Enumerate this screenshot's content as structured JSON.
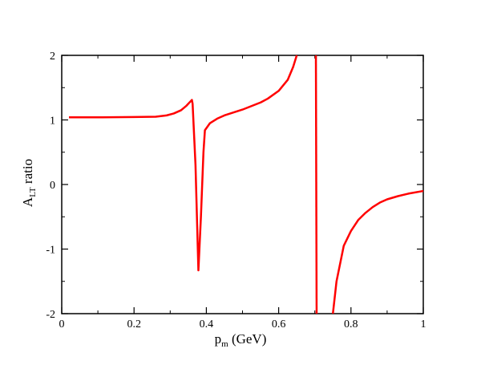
{
  "chart_data": {
    "type": "line",
    "title": "",
    "xlabel_main": "p",
    "xlabel_sub": "m",
    "xlabel_rest": " (GeV)",
    "ylabel_main": "A",
    "ylabel_sub": "LT",
    "ylabel_rest": " ratio",
    "xlim": [
      0,
      1
    ],
    "ylim": [
      -2,
      2
    ],
    "xticks": [
      0,
      0.2,
      0.4,
      0.6,
      0.8,
      1
    ],
    "xtick_labels": [
      "0",
      "0.2",
      "0.4",
      "0.6",
      "0.8",
      "1"
    ],
    "yticks": [
      -2,
      -1,
      0,
      1,
      2
    ],
    "ytick_labels": [
      "-2",
      "-1",
      "0",
      "1",
      "2"
    ],
    "grid": false,
    "series": [
      {
        "color": "#ff0000",
        "segments": [
          [
            [
              0.02,
              1.04
            ],
            [
              0.1,
              1.04
            ],
            [
              0.2,
              1.045
            ],
            [
              0.26,
              1.05
            ],
            [
              0.29,
              1.07
            ],
            [
              0.31,
              1.1
            ],
            [
              0.33,
              1.15
            ],
            [
              0.345,
              1.22
            ],
            [
              0.36,
              1.31
            ],
            [
              0.362,
              1.25
            ],
            [
              0.37,
              0.3
            ],
            [
              0.378,
              -1.33
            ],
            [
              0.385,
              -0.5
            ],
            [
              0.392,
              0.5
            ],
            [
              0.396,
              0.84
            ],
            [
              0.41,
              0.95
            ],
            [
              0.43,
              1.02
            ],
            [
              0.45,
              1.07
            ],
            [
              0.5,
              1.16
            ],
            [
              0.55,
              1.27
            ],
            [
              0.57,
              1.33
            ],
            [
              0.6,
              1.45
            ],
            [
              0.625,
              1.62
            ],
            [
              0.64,
              1.82
            ],
            [
              0.65,
              2.0
            ]
          ],
          [
            [
              0.703,
              2.0
            ],
            [
              0.705,
              -2.0
            ]
          ],
          [
            [
              0.75,
              -2.0
            ],
            [
              0.76,
              -1.5
            ],
            [
              0.78,
              -0.95
            ],
            [
              0.8,
              -0.72
            ],
            [
              0.82,
              -0.55
            ],
            [
              0.84,
              -0.44
            ],
            [
              0.86,
              -0.35
            ],
            [
              0.88,
              -0.28
            ],
            [
              0.9,
              -0.23
            ],
            [
              0.93,
              -0.18
            ],
            [
              0.96,
              -0.14
            ],
            [
              1.0,
              -0.1
            ]
          ]
        ]
      }
    ]
  }
}
